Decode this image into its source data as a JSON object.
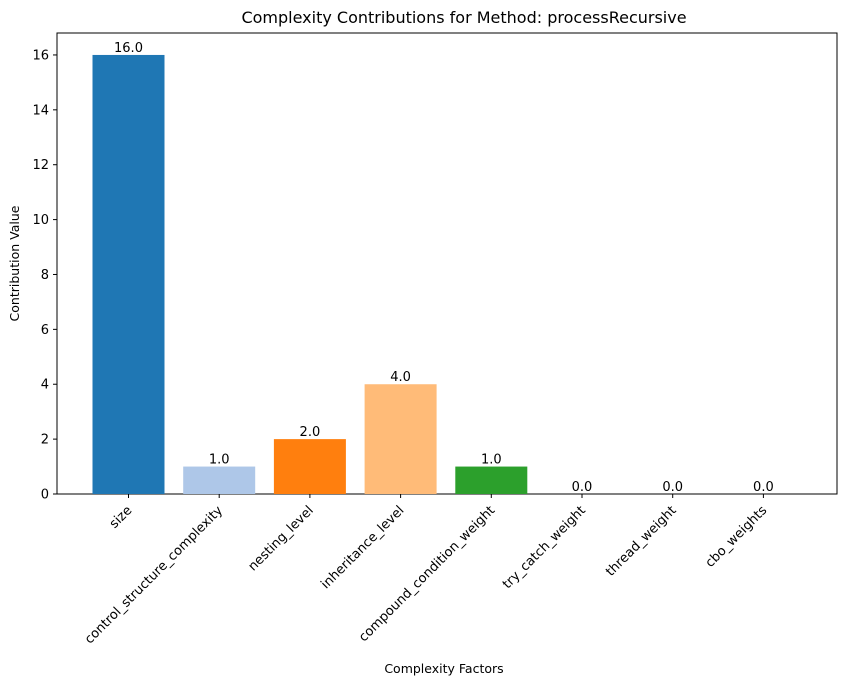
{
  "chart_data": {
    "type": "bar",
    "title": "Complexity Contributions for Method: processRecursive",
    "xlabel": "Complexity Factors",
    "ylabel": "Contribution Value",
    "categories": [
      "size",
      "control_structure_complexity",
      "nesting_level",
      "inheritance_level",
      "compound_condition_weight",
      "try_catch_weight",
      "thread_weight",
      "cbo_weights"
    ],
    "values": [
      16.0,
      1.0,
      2.0,
      4.0,
      1.0,
      0.0,
      0.0,
      0.0
    ],
    "value_labels": [
      "16.0",
      "1.0",
      "2.0",
      "4.0",
      "1.0",
      "0.0",
      "0.0",
      "0.0"
    ],
    "colors": [
      "#1f77b4",
      "#aec7e8",
      "#ff7f0e",
      "#ffbb78",
      "#2ca02c",
      "#98df8a",
      "#d62728",
      "#ff9896"
    ],
    "ylim": [
      0,
      16.8
    ],
    "yticks": [
      0,
      2,
      4,
      6,
      8,
      10,
      12,
      14,
      16
    ],
    "grid": false
  }
}
